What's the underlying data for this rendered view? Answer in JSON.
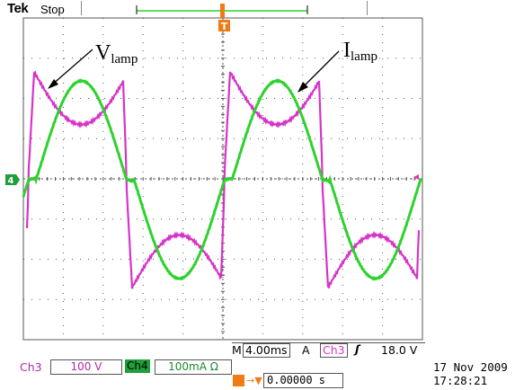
{
  "header": {
    "brand": "Tek",
    "status": "Stop"
  },
  "annotations": {
    "v_main": "V",
    "v_sub": "lamp",
    "i_main": "I",
    "i_sub": "lamp"
  },
  "markers": {
    "ch4_ground": "4",
    "trigger_top": "T"
  },
  "readouts": {
    "timebase_prefix": "M",
    "timebase": "4.00ms",
    "trigger_mode": "A",
    "trigger_channel": "Ch3",
    "trigger_slope": "ʃ",
    "trigger_level": "18.0 V",
    "ch3_label": "Ch3",
    "ch3_scale": "100 V",
    "ch4_label": "Ch4",
    "ch4_scale": "100mA Ω",
    "trigger_pos_value": "0.00000 s",
    "date": "17 Nov 2009",
    "time": "17:28:21"
  },
  "colors": {
    "ch3": "#d633c8",
    "ch4": "#2fd12f",
    "grid": "#555555",
    "trigger": "#f07a14"
  },
  "chart_data": {
    "type": "line",
    "xlabel": "",
    "ylabel": "",
    "grid": true,
    "series": [
      {
        "name": "V lamp",
        "channel": "Ch3",
        "color": "#d633c8"
      },
      {
        "name": "I lamp",
        "channel": "Ch4",
        "color": "#2fd12f"
      }
    ]
  }
}
